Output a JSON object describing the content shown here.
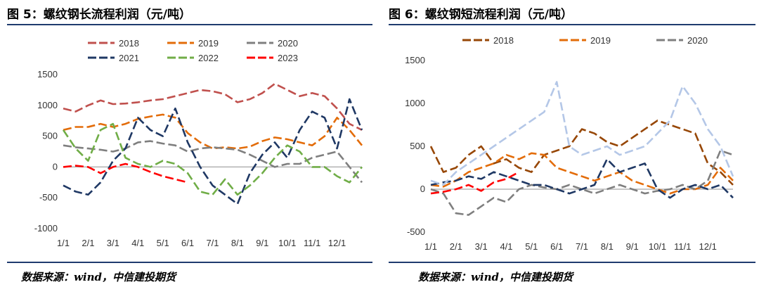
{
  "left": {
    "title": "图 5：螺纹钢长流程利润（元/吨）",
    "source": "数据来源：wind，中信建投期货"
  },
  "right": {
    "title": "图 6：螺纹钢短流程利润（元/吨）",
    "source": "数据来源：wind，中信建投期货"
  },
  "chart_data": [
    {
      "type": "line",
      "title": "图 5：螺纹钢长流程利润（元/吨）",
      "unit": "元/吨",
      "categories": [
        "1/1",
        "2/1",
        "3/1",
        "4/1",
        "5/1",
        "6/1",
        "7/1",
        "8/1",
        "9/1",
        "10/1",
        "11/1",
        "12/1"
      ],
      "ylim": [
        -1000,
        1500
      ],
      "yticks": [
        -1000,
        -500,
        0,
        500,
        1000,
        1500
      ],
      "legend_position": "top",
      "series": [
        {
          "name": "2018",
          "color": "#c0504d",
          "x": [
            0,
            0.5,
            1,
            1.5,
            2,
            2.5,
            3,
            3.5,
            4,
            4.5,
            5,
            5.5,
            6,
            6.5,
            7,
            7.5,
            8,
            8.5,
            9,
            9.5,
            10,
            10.5,
            11,
            11.5,
            12
          ],
          "values": [
            950,
            900,
            1000,
            1080,
            1020,
            1030,
            1050,
            1080,
            1100,
            1150,
            1200,
            1250,
            1230,
            1180,
            1050,
            1100,
            1200,
            1350,
            1250,
            1150,
            1200,
            1150,
            950,
            700,
            600
          ]
        },
        {
          "name": "2019",
          "color": "#e36c09",
          "x": [
            0,
            0.5,
            1,
            1.5,
            2,
            2.5,
            3,
            3.5,
            4,
            4.5,
            5,
            5.5,
            6,
            6.5,
            7,
            7.5,
            8,
            8.5,
            9,
            9.5,
            10,
            10.5,
            11,
            11.5,
            12
          ],
          "values": [
            600,
            650,
            650,
            700,
            650,
            700,
            780,
            820,
            850,
            800,
            550,
            400,
            300,
            320,
            300,
            330,
            420,
            480,
            450,
            400,
            350,
            500,
            800,
            600,
            350
          ]
        },
        {
          "name": "2020",
          "color": "#7f7f7f",
          "x": [
            0,
            0.5,
            1,
            1.5,
            2,
            2.5,
            3,
            3.5,
            4,
            4.5,
            5,
            5.5,
            6,
            6.5,
            7,
            7.5,
            8,
            8.5,
            9,
            9.5,
            10,
            10.5,
            11,
            11.5,
            12
          ],
          "values": [
            350,
            320,
            300,
            280,
            250,
            300,
            400,
            420,
            380,
            350,
            250,
            300,
            320,
            300,
            280,
            200,
            100,
            0,
            50,
            50,
            150,
            200,
            250,
            0,
            -250
          ]
        },
        {
          "name": "2021",
          "color": "#1f3864",
          "x": [
            0,
            0.5,
            1,
            1.5,
            2,
            2.5,
            3,
            3.5,
            4,
            4.5,
            5,
            5.5,
            6,
            6.5,
            7,
            7.5,
            8,
            8.5,
            9,
            9.5,
            10,
            10.5,
            11,
            11.5,
            12
          ],
          "values": [
            -300,
            -400,
            -450,
            -250,
            100,
            300,
            800,
            600,
            500,
            950,
            400,
            0,
            -300,
            -450,
            -600,
            -100,
            200,
            400,
            150,
            600,
            900,
            800,
            300,
            1100,
            600
          ]
        },
        {
          "name": "2022",
          "color": "#70ad47",
          "x": [
            0,
            0.5,
            1,
            1.5,
            2,
            2.5,
            3,
            3.5,
            4,
            4.5,
            5,
            5.5,
            6,
            6.5,
            7,
            7.5,
            8,
            8.5,
            9,
            9.5,
            10,
            10.5,
            11,
            11.5,
            12
          ],
          "values": [
            600,
            300,
            100,
            600,
            700,
            150,
            50,
            0,
            100,
            50,
            -100,
            -400,
            -450,
            -200,
            -450,
            -300,
            -100,
            150,
            350,
            250,
            0,
            0,
            -150,
            -250,
            0
          ]
        },
        {
          "name": "2023",
          "color": "#ff0000",
          "x": [
            0,
            0.5,
            1,
            1.5,
            2,
            2.5,
            3,
            3.5,
            4,
            4.5,
            5
          ],
          "values": [
            0,
            20,
            0,
            -100,
            0,
            50,
            0,
            -80,
            -150,
            -200,
            -250
          ]
        }
      ]
    },
    {
      "type": "line",
      "title": "图 6：螺纹钢短流程利润（元/吨）",
      "unit": "元/吨",
      "categories": [
        "1/1",
        "2/1",
        "3/1",
        "4/1",
        "5/1",
        "6/1",
        "7/1",
        "8/1",
        "9/1",
        "10/1",
        "11/1",
        "12/1"
      ],
      "ylim": [
        -500,
        1500
      ],
      "yticks": [
        -500,
        0,
        500,
        1000,
        1500
      ],
      "legend_position": "top",
      "series": [
        {
          "name": "2018",
          "color": "#974706",
          "x": [
            0,
            0.5,
            1,
            1.5,
            2,
            2.5,
            3,
            3.5,
            4,
            4.5,
            5,
            5.5,
            6,
            6.5,
            7,
            7.5,
            8,
            8.5,
            9,
            9.5,
            10,
            10.5,
            11,
            11.5,
            12
          ],
          "values": [
            500,
            200,
            250,
            400,
            500,
            300,
            350,
            250,
            200,
            400,
            450,
            500,
            700,
            650,
            550,
            500,
            600,
            700,
            800,
            750,
            700,
            650,
            300,
            200,
            50
          ]
        },
        {
          "name": "2019",
          "color": "#e36c09",
          "x": [
            0,
            0.5,
            1,
            1.5,
            2,
            2.5,
            3,
            3.5,
            4,
            4.5,
            5,
            5.5,
            6,
            6.5,
            7,
            7.5,
            8,
            8.5,
            9,
            9.5,
            10,
            10.5,
            11,
            11.5,
            12
          ],
          "values": [
            50,
            30,
            100,
            200,
            250,
            300,
            400,
            350,
            420,
            400,
            250,
            200,
            150,
            100,
            150,
            200,
            100,
            50,
            0,
            -50,
            0,
            0,
            50,
            250,
            100
          ]
        },
        {
          "name": "2020",
          "color": "#7f7f7f",
          "x": [
            0,
            0.5,
            1,
            1.5,
            2,
            2.5,
            3,
            3.5,
            4,
            4.5,
            5,
            5.5,
            6,
            6.5,
            7,
            7.5,
            8,
            8.5,
            9,
            9.5,
            10,
            10.5,
            11,
            11.5,
            12
          ],
          "values": [
            0,
            -50,
            -280,
            -300,
            -200,
            -100,
            -150,
            0,
            50,
            20,
            0,
            50,
            0,
            -50,
            0,
            50,
            0,
            -50,
            -20,
            0,
            50,
            0,
            100,
            450,
            400
          ]
        },
        {
          "name": "",
          "color": "#1f3864",
          "x": [
            0,
            0.5,
            1,
            1.5,
            2,
            2.5,
            3,
            3.5,
            4,
            4.5,
            5,
            5.5,
            6,
            6.5,
            7,
            7.5,
            8,
            8.5,
            9,
            9.5,
            10,
            10.5,
            11,
            11.5,
            12
          ],
          "values": [
            50,
            80,
            100,
            150,
            120,
            200,
            150,
            100,
            50,
            50,
            0,
            -50,
            0,
            50,
            350,
            200,
            250,
            300,
            0,
            -100,
            0,
            50,
            0,
            50,
            -100
          ]
        },
        {
          "name": "",
          "color": "#b4c7e7",
          "x": [
            0,
            0.5,
            1,
            1.5,
            2,
            2.5,
            3,
            3.5,
            4,
            4.5,
            5,
            5.5,
            6,
            6.5,
            7,
            7.5,
            8,
            8.5,
            9,
            9.5,
            10,
            10.5,
            11,
            11.5,
            12
          ],
          "values": [
            100,
            50,
            200,
            300,
            400,
            500,
            600,
            700,
            800,
            900,
            1250,
            500,
            400,
            450,
            500,
            400,
            450,
            500,
            650,
            800,
            1200,
            1000,
            700,
            500,
            150
          ]
        },
        {
          "name": "",
          "color": "#ff0000",
          "x": [
            0,
            0.5,
            1,
            1.5,
            2,
            2.5,
            3,
            3.5
          ],
          "values": [
            -50,
            -30,
            0,
            50,
            -20,
            80,
            120,
            200
          ]
        }
      ]
    }
  ]
}
